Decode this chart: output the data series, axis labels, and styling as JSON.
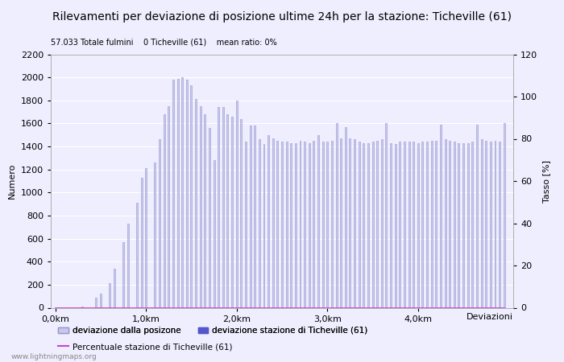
{
  "title": "Rilevamenti per deviazione di posizione ultime 24h per la stazione: Ticheville (61)",
  "subtitle": "57.033 Totale fulmini    0 Ticheville (61)    mean ratio: 0%",
  "xlabel": "Deviazioni",
  "ylabel_left": "Numero",
  "ylabel_right": "Tasso [%]",
  "watermark": "www.lightningmaps.org",
  "ylim_left": [
    0,
    2200
  ],
  "ylim_right": [
    0,
    120
  ],
  "yticks_left": [
    0,
    200,
    400,
    600,
    800,
    1000,
    1200,
    1400,
    1600,
    1800,
    2000,
    2200
  ],
  "yticks_right": [
    0,
    20,
    40,
    60,
    80,
    100,
    120
  ],
  "bar_color": "#c8c8ef",
  "bar_edge_color": "#9898cc",
  "station_bar_color": "#5555cc",
  "line_color": "#cc44cc",
  "background_color": "#eeeeff",
  "grid_color": "#ffffff",
  "xtick_labels": [
    "0,0km",
    "1,0km",
    "2,0km",
    "3,0km",
    "4,0km"
  ],
  "xtick_positions": [
    0,
    20,
    40,
    60,
    80
  ],
  "bar_values": [
    0,
    0,
    0,
    0,
    0,
    0,
    10,
    0,
    0,
    90,
    120,
    0,
    210,
    340,
    0,
    570,
    730,
    0,
    910,
    1130,
    1210,
    0,
    1260,
    1460,
    1680,
    1750,
    1980,
    1990,
    2000,
    1980,
    1930,
    1810,
    1750,
    1680,
    1560,
    1280,
    1740,
    1740,
    1680,
    1660,
    1800,
    1640,
    1440,
    1580,
    1580,
    1460,
    1420,
    1500,
    1470,
    1450,
    1440,
    1440,
    1430,
    1430,
    1450,
    1440,
    1430,
    1450,
    1500,
    1440,
    1440,
    1450,
    1600,
    1470,
    1570,
    1470,
    1460,
    1440,
    1430,
    1430,
    1440,
    1450,
    1460,
    1600,
    1430,
    1420,
    1440,
    1440,
    1440,
    1440,
    1430,
    1440,
    1440,
    1450,
    1450,
    1590,
    1460,
    1450,
    1440,
    1430,
    1430,
    1430,
    1440,
    1590,
    1460,
    1450,
    1440,
    1450,
    1440,
    1600
  ],
  "station_bar_index": [],
  "ratio_values": [
    0,
    0,
    0,
    0,
    0,
    0,
    0,
    0,
    0,
    0,
    0,
    0,
    0,
    0,
    0,
    0,
    0,
    0,
    0,
    0,
    0,
    0,
    0,
    0,
    0,
    0,
    0,
    0,
    0,
    0,
    0,
    0,
    0,
    0,
    0,
    0,
    0,
    0,
    0,
    0,
    0,
    0,
    0,
    0,
    0,
    0,
    0,
    0,
    0,
    0,
    0,
    0,
    0,
    0,
    0,
    0,
    0,
    0,
    0,
    0,
    0,
    0,
    0,
    0,
    0,
    0,
    0,
    0,
    0,
    0,
    0,
    0,
    0,
    0,
    0,
    0,
    0,
    0,
    0,
    0,
    0,
    0,
    0,
    0,
    0,
    0,
    0,
    0,
    0,
    0,
    0,
    0,
    0,
    0,
    0,
    0,
    0,
    0,
    0,
    0
  ],
  "n_bars": 100,
  "legend_labels": [
    "deviazione dalla posizone",
    "deviazione stazione di Ticheville (61)",
    "Percentuale stazione di Ticheville (61)"
  ],
  "legend_colors": [
    "#c8c8ef",
    "#5555cc",
    "#cc44cc"
  ],
  "title_fontsize": 10,
  "axis_fontsize": 8,
  "tick_fontsize": 8,
  "bar_width": 0.35
}
